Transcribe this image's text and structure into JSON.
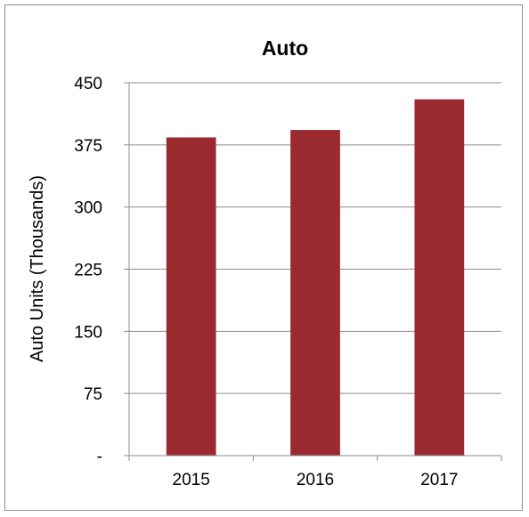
{
  "chart_data": {
    "type": "bar",
    "title": "Auto",
    "ylabel": "Auto Units    (Thousands)",
    "xlabel": "",
    "categories": [
      "2015",
      "2016",
      "2017"
    ],
    "values": [
      384,
      393,
      430
    ],
    "ylim": [
      0,
      450
    ],
    "yticks": [
      0,
      75,
      150,
      225,
      300,
      375,
      450
    ],
    "ytick_labels": [
      "-",
      "75",
      "150",
      "225",
      "300",
      "375",
      "450"
    ],
    "bar_color": "#9a2a30",
    "grid": true,
    "grid_color": "#8c8c8c",
    "legend": "none"
  }
}
